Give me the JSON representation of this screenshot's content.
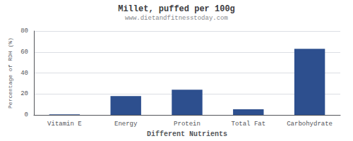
{
  "chart_data": {
    "type": "bar",
    "title": "Millet, puffed per 100g",
    "subtitle": "www.dietandfitnesstoday.com",
    "xlabel": "Different Nutrients",
    "ylabel": "Percentage of RDH (%)",
    "categories": [
      "Vitamin E",
      "Energy",
      "Protein",
      "Total Fat",
      "Carbohydrate"
    ],
    "values": [
      0.5,
      18,
      24,
      5.5,
      63
    ],
    "color": "#2d4f8e",
    "ylim": [
      0,
      80
    ],
    "yticks": [
      0,
      20,
      40,
      60,
      80
    ],
    "grid": true
  }
}
